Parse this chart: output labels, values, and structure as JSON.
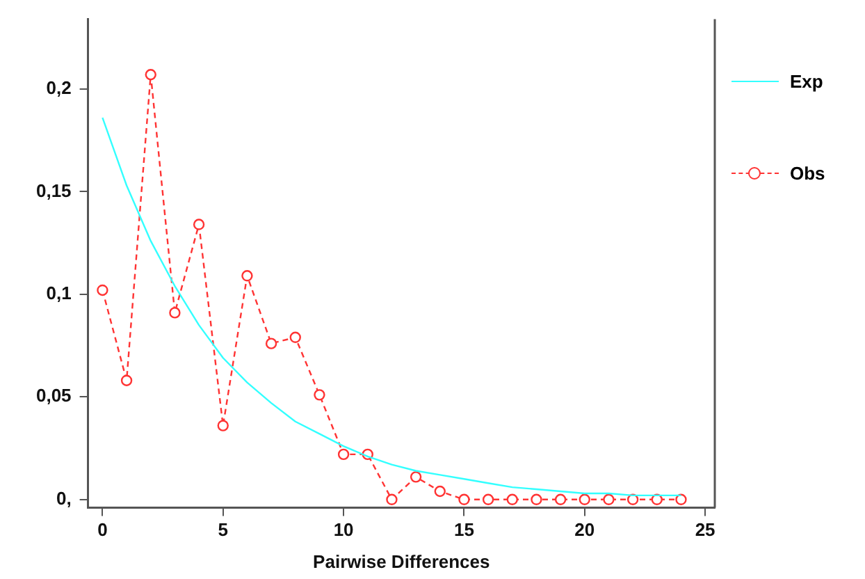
{
  "chart_data": {
    "type": "line",
    "xlabel": "Pairwise Differences",
    "x": [
      0,
      1,
      2,
      3,
      4,
      5,
      6,
      7,
      8,
      9,
      10,
      11,
      12,
      13,
      14,
      15,
      16,
      17,
      18,
      19,
      20,
      21,
      22,
      23,
      24
    ],
    "series": [
      {
        "name": "Exp",
        "color": "#33ffff",
        "marker": "none",
        "line_style": "solid",
        "values": [
          0.186,
          0.153,
          0.126,
          0.104,
          0.085,
          0.069,
          0.057,
          0.047,
          0.038,
          0.032,
          0.026,
          0.021,
          0.017,
          0.014,
          0.012,
          0.01,
          0.008,
          0.006,
          0.005,
          0.004,
          0.003,
          0.003,
          0.002,
          0.002,
          0.002
        ]
      },
      {
        "name": "Obs",
        "color": "#ff3333",
        "marker": "circle",
        "line_style": "dashed",
        "values": [
          0.102,
          0.058,
          0.207,
          0.091,
          0.134,
          0.036,
          0.109,
          0.076,
          0.079,
          0.051,
          0.022,
          0.022,
          0,
          0.011,
          0.004,
          0,
          0,
          0,
          0,
          0,
          0,
          0,
          0,
          0,
          0
        ]
      }
    ],
    "xlim": [
      -0.6,
      25.4
    ],
    "xticks": [
      0,
      5,
      10,
      15,
      20,
      25
    ],
    "ylim": [
      -0.004,
      0.234
    ],
    "yticks": [
      {
        "value": 0,
        "label": "0,"
      },
      {
        "value": 0.05,
        "label": "0,05"
      },
      {
        "value": 0.1,
        "label": "0,1"
      },
      {
        "value": 0.15,
        "label": "0,15"
      },
      {
        "value": 0.2,
        "label": "0,2"
      }
    ],
    "grid": false,
    "legend": "right"
  }
}
